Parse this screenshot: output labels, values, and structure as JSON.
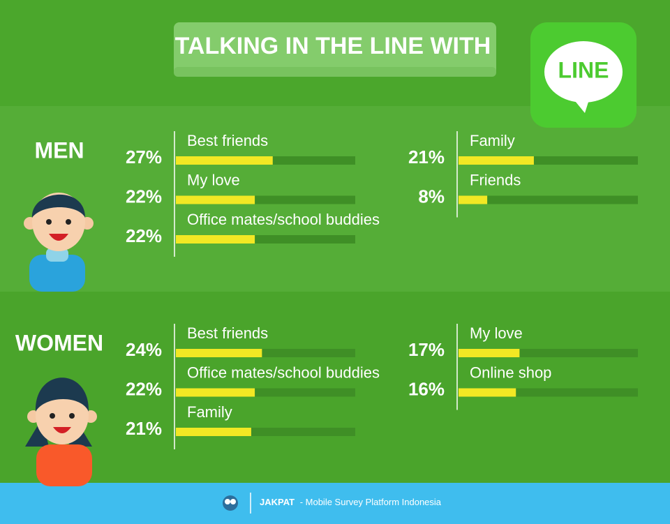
{
  "header": {
    "title": "TALKING IN THE LINE WITH"
  },
  "logo": "LINE",
  "footer": {
    "brand": "JAKPAT",
    "tagline": "- Mobile Survey Platform Indonesia"
  },
  "chart_data": [
    {
      "type": "bar",
      "title": "MEN",
      "categories": [
        "Best friends",
        "My love",
        "Office mates/school buddies",
        "Family",
        "Friends"
      ],
      "values": [
        27,
        22,
        22,
        21,
        8
      ],
      "value_labels": [
        "27%",
        "22%",
        "22%",
        "21%",
        "8%"
      ],
      "color": "#f2e824",
      "track_color": "#3f8f26",
      "xlim": [
        0,
        50
      ]
    },
    {
      "type": "bar",
      "title": "WOMEN",
      "categories": [
        "Best friends",
        "Office mates/school buddies",
        "Family",
        "My love",
        "Online shop"
      ],
      "values": [
        24,
        22,
        21,
        17,
        16
      ],
      "value_labels": [
        "24%",
        "22%",
        "21%",
        "17%",
        "16%"
      ],
      "color": "#f2e824",
      "track_color": "#3f8f26",
      "xlim": [
        0,
        50
      ]
    }
  ]
}
